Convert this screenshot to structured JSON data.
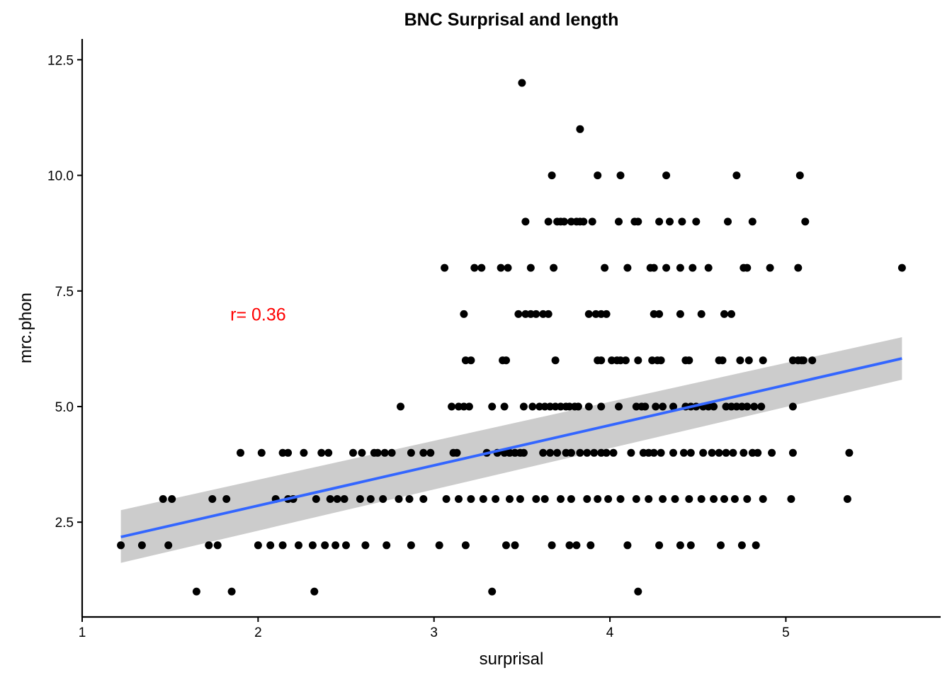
{
  "chart_data": {
    "type": "scatter",
    "title": "BNC Surprisal and length",
    "xlabel": "surprisal",
    "ylabel": "mrc.phon",
    "xlim": [
      1.0,
      5.88
    ],
    "ylim": [
      0.45,
      12.95
    ],
    "x_ticks": [
      1,
      2,
      3,
      4,
      5
    ],
    "x_tick_labels": [
      "1",
      "2",
      "3",
      "4",
      "5"
    ],
    "y_ticks": [
      2.5,
      5.0,
      7.5,
      10.0,
      12.5
    ],
    "y_tick_labels": [
      "2.5",
      "5.0",
      "7.5",
      "10.0",
      "12.5"
    ],
    "grid": false,
    "annotation": {
      "text": "r= 0.36",
      "x": 2.0,
      "y": 7.0,
      "color": "#ff0000"
    },
    "regression": {
      "x": [
        1.22,
        5.66
      ],
      "y": [
        2.18,
        6.04
      ],
      "ci_lower": [
        1.62,
        5.58
      ],
      "ci_upper": [
        2.76,
        6.5
      ],
      "color": "#3366ff",
      "ci_color": "#cccccc"
    },
    "point_color": "#000000",
    "rows": [
      {
        "y": 12,
        "x": [
          3.5
        ]
      },
      {
        "y": 11,
        "x": [
          3.83
        ]
      },
      {
        "y": 10,
        "x": [
          3.67,
          3.93,
          4.06,
          4.32,
          4.72,
          5.08
        ]
      },
      {
        "y": 9,
        "x": [
          3.52,
          3.65,
          3.7,
          3.72,
          3.74,
          3.78,
          3.81,
          3.83,
          3.85,
          3.9,
          4.05,
          4.14,
          4.16,
          4.28,
          4.34,
          4.41,
          4.49,
          4.67,
          4.81,
          5.11
        ]
      },
      {
        "y": 8,
        "x": [
          3.06,
          3.23,
          3.27,
          3.38,
          3.42,
          3.55,
          3.68,
          3.97,
          4.1,
          4.23,
          4.25,
          4.32,
          4.4,
          4.47,
          4.56,
          4.76,
          4.78,
          4.91,
          5.07,
          5.66
        ]
      },
      {
        "y": 7,
        "x": [
          3.17,
          3.48,
          3.52,
          3.55,
          3.58,
          3.62,
          3.65,
          3.88,
          3.92,
          3.95,
          3.98,
          4.25,
          4.28,
          4.4,
          4.52,
          4.65,
          4.69
        ]
      },
      {
        "y": 6,
        "x": [
          3.18,
          3.21,
          3.39,
          3.41,
          3.69,
          3.93,
          3.95,
          4.01,
          4.04,
          4.06,
          4.09,
          4.16,
          4.24,
          4.27,
          4.29,
          4.43,
          4.45,
          4.62,
          4.64,
          4.74,
          4.79,
          4.87,
          5.04,
          5.07,
          5.09,
          5.1,
          5.15
        ]
      },
      {
        "y": 5,
        "x": [
          2.81,
          3.1,
          3.14,
          3.17,
          3.2,
          3.33,
          3.4,
          3.51,
          3.56,
          3.6,
          3.63,
          3.66,
          3.69,
          3.72,
          3.75,
          3.77,
          3.8,
          3.82,
          3.88,
          3.95,
          4.05,
          4.15,
          4.18,
          4.2,
          4.26,
          4.3,
          4.36,
          4.43,
          4.46,
          4.49,
          4.53,
          4.56,
          4.59,
          4.66,
          4.69,
          4.72,
          4.75,
          4.78,
          4.82,
          4.86,
          5.04
        ]
      },
      {
        "y": 4,
        "x": [
          1.9,
          2.02,
          2.14,
          2.17,
          2.26,
          2.36,
          2.4,
          2.54,
          2.59,
          2.66,
          2.68,
          2.72,
          2.76,
          2.87,
          2.94,
          2.98,
          3.11,
          3.13,
          3.3,
          3.36,
          3.4,
          3.43,
          3.46,
          3.49,
          3.51,
          3.62,
          3.66,
          3.7,
          3.75,
          3.78,
          3.83,
          3.87,
          3.91,
          3.95,
          3.98,
          4.02,
          4.12,
          4.19,
          4.22,
          4.25,
          4.29,
          4.36,
          4.42,
          4.46,
          4.53,
          4.58,
          4.62,
          4.66,
          4.7,
          4.76,
          4.81,
          4.84,
          4.92,
          5.04,
          5.36
        ]
      },
      {
        "y": 3,
        "x": [
          1.46,
          1.51,
          1.74,
          1.82,
          2.1,
          2.17,
          2.2,
          2.33,
          2.41,
          2.45,
          2.49,
          2.58,
          2.64,
          2.71,
          2.8,
          2.86,
          2.94,
          3.07,
          3.14,
          3.21,
          3.28,
          3.35,
          3.43,
          3.49,
          3.58,
          3.63,
          3.72,
          3.78,
          3.87,
          3.93,
          3.99,
          4.06,
          4.15,
          4.22,
          4.3,
          4.37,
          4.45,
          4.52,
          4.59,
          4.65,
          4.71,
          4.78,
          4.87,
          5.03,
          5.35
        ]
      },
      {
        "y": 2,
        "x": [
          1.22,
          1.34,
          1.49,
          1.72,
          1.77,
          2.0,
          2.07,
          2.14,
          2.23,
          2.31,
          2.38,
          2.44,
          2.5,
          2.61,
          2.73,
          2.87,
          3.03,
          3.18,
          3.41,
          3.46,
          3.67,
          3.77,
          3.81,
          3.89,
          4.1,
          4.28,
          4.4,
          4.46,
          4.63,
          4.75,
          4.83
        ]
      },
      {
        "y": 1,
        "x": [
          1.65,
          1.85,
          2.32,
          3.33,
          4.16
        ]
      }
    ]
  }
}
